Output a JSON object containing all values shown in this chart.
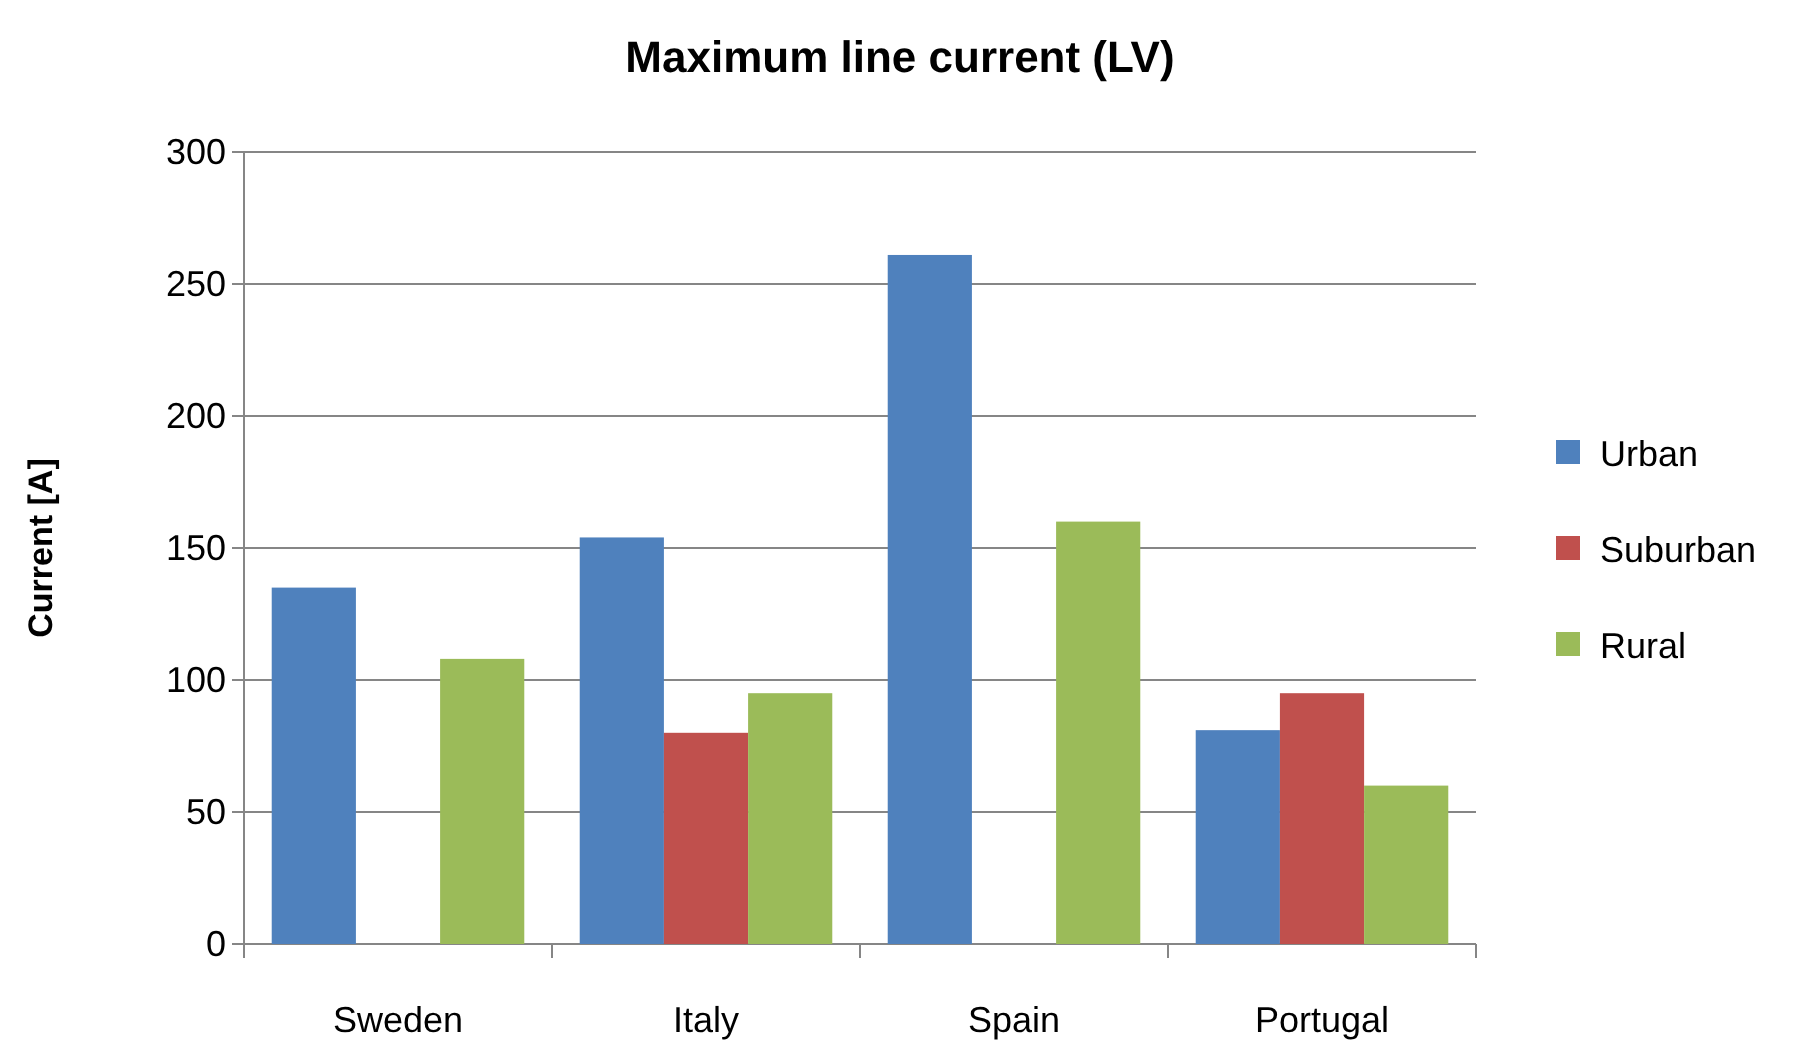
{
  "chart_data": {
    "type": "bar",
    "title": "Maximum line current (LV)",
    "ylabel": "Current [A]",
    "categories": [
      "Sweden",
      "Italy",
      "Spain",
      "Portugal"
    ],
    "series": [
      {
        "name": "Urban",
        "color": "#4f81bd",
        "values": [
          135,
          154,
          261,
          81
        ]
      },
      {
        "name": "Suburban",
        "color": "#c0504d",
        "values": [
          null,
          80,
          null,
          95
        ]
      },
      {
        "name": "Rural",
        "color": "#9bbb59",
        "values": [
          108,
          95,
          160,
          60
        ]
      }
    ],
    "ylim": [
      0,
      300
    ],
    "yticks": [
      0,
      50,
      100,
      150,
      200,
      250,
      300
    ],
    "grid": "y",
    "legend": "right"
  }
}
